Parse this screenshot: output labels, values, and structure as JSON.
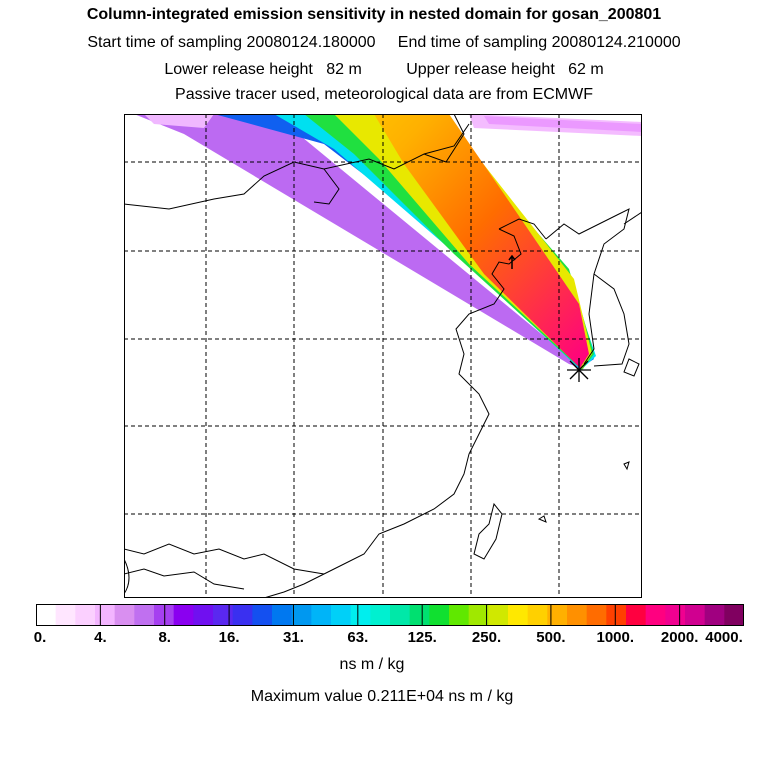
{
  "header": {
    "title": "Column-integrated emission sensitivity in nested domain for gosan_200801",
    "sampling": "Start time of sampling 20080124.180000     End time of sampling 20080124.210000",
    "release": "Lower release height   82 m          Upper release height   62 m",
    "tracer": "Passive tracer used, meteorological data are from ECMWF"
  },
  "colorbar": {
    "tick_labels": [
      "0.",
      "4.",
      "8.",
      "16.",
      "31.",
      "63.",
      "125.",
      "250.",
      "500.",
      "1000.",
      "2000.",
      "4000."
    ],
    "unit": "ns m / kg",
    "max_value": "Maximum value  0.211E+04 ns m / kg",
    "colors": [
      "#ffffff",
      "#ffe6ff",
      "#fbd0ff",
      "#f3b5ff",
      "#d98ff0",
      "#c070f0",
      "#a640f0",
      "#8a00f0",
      "#7010f0",
      "#5a28f0",
      "#3a30f0",
      "#1450f0",
      "#0078f0",
      "#0098f0",
      "#00b4f8",
      "#00d0f8",
      "#00eeee",
      "#00f0d0",
      "#00e8a8",
      "#00e070",
      "#10e030",
      "#60e800",
      "#a0e800",
      "#d0e800",
      "#ffe800",
      "#ffd000",
      "#ffb000",
      "#ff9000",
      "#ff6c00",
      "#ff4000",
      "#ff0040",
      "#ff0080",
      "#f00090",
      "#d00090",
      "#a00080",
      "#800060"
    ]
  },
  "map": {
    "receptor": "gosan",
    "marker": "receptor-star-marker"
  }
}
